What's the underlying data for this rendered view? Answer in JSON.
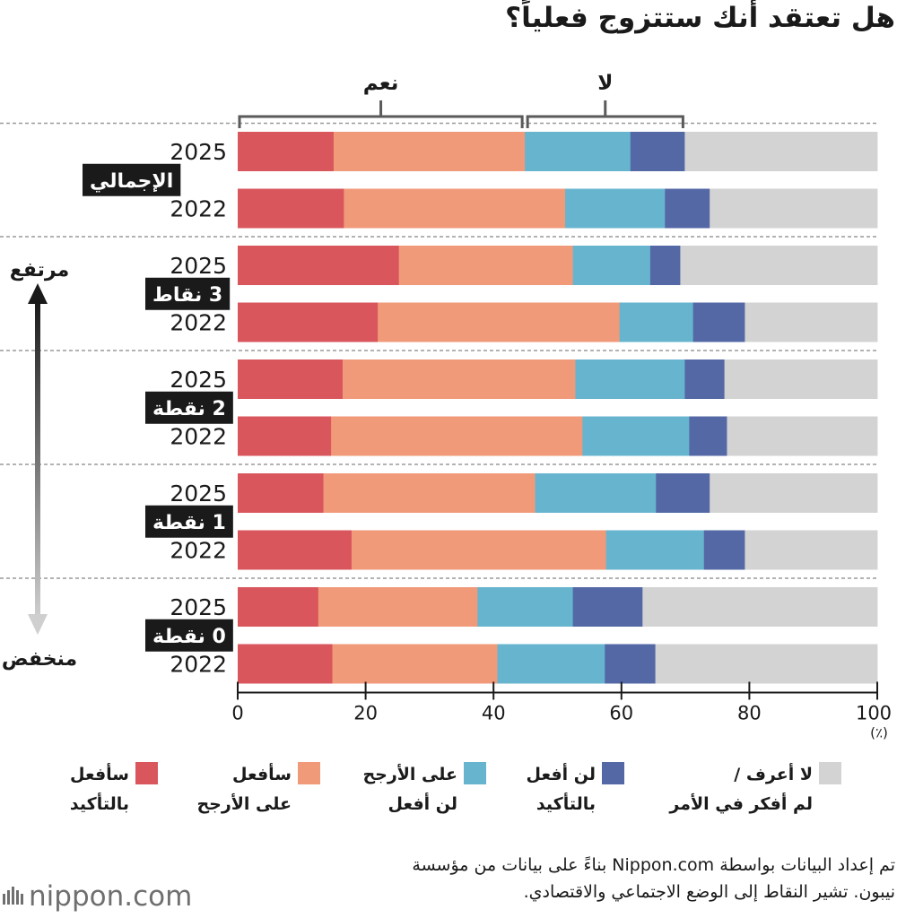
{
  "title": "هل تعتقد أنك ستتزوج فعلياً؟",
  "chart_data": {
    "type": "bar",
    "orientation": "horizontal",
    "stacked": true,
    "xlim": [
      0,
      100
    ],
    "x_ticks": [
      "0",
      "20",
      "40",
      "60",
      "80",
      "100"
    ],
    "unit_label": "(٪)",
    "bracket_labels": {
      "yes": "نعم",
      "no": "لا"
    },
    "axis_arrow": {
      "high": "مرتفع",
      "low": "منخفض"
    },
    "groups": [
      {
        "label": "الإجمالي",
        "rows": [
          {
            "year": "2025",
            "values": [
              15.0,
              29.9,
              16.5,
              8.5,
              30.1
            ]
          },
          {
            "year": "2022",
            "values": [
              16.6,
              34.6,
              15.6,
              7.0,
              26.2
            ]
          }
        ]
      },
      {
        "label": "3 نقاط",
        "rows": [
          {
            "year": "2025",
            "values": [
              25.2,
              27.2,
              12.1,
              4.7,
              30.8
            ]
          },
          {
            "year": "2022",
            "values": [
              21.9,
              37.8,
              11.5,
              8.1,
              20.7
            ]
          }
        ]
      },
      {
        "label": "2 نقطة",
        "rows": [
          {
            "year": "2025",
            "values": [
              16.4,
              36.4,
              17.1,
              6.2,
              23.9
            ]
          },
          {
            "year": "2022",
            "values": [
              14.6,
              39.3,
              16.7,
              5.9,
              23.5
            ]
          }
        ]
      },
      {
        "label": "1 نقطة",
        "rows": [
          {
            "year": "2025",
            "values": [
              13.4,
              33.1,
              18.9,
              8.4,
              26.2
            ]
          },
          {
            "year": "2022",
            "values": [
              17.8,
              39.8,
              15.3,
              6.4,
              20.7
            ]
          }
        ]
      },
      {
        "label": "0 نقطة",
        "rows": [
          {
            "year": "2025",
            "values": [
              12.6,
              24.9,
              14.9,
              10.9,
              36.7
            ]
          },
          {
            "year": "2022",
            "values": [
              14.8,
              25.8,
              16.8,
              7.9,
              34.7
            ]
          }
        ]
      }
    ],
    "series": [
      {
        "name": "سأفعل بالتأكيد",
        "color": "#d9565c"
      },
      {
        "name": "سأفعل على الأرجح",
        "color": "#f09a7a"
      },
      {
        "name": "على الأرجح لن أفعل",
        "color": "#67b4cf"
      },
      {
        "name": "لن أفعل بالتأكيد",
        "color": "#5468a6"
      },
      {
        "name": "لا أعرف / لم أفكر في الأمر",
        "color": "#d3d3d3"
      }
    ]
  },
  "legend": [
    {
      "line1": "سأفعل",
      "line2": "بالتأكيد",
      "color": "#d9565c"
    },
    {
      "line1": "سأفعل",
      "line2": "على الأرجح",
      "color": "#f09a7a"
    },
    {
      "line1": "على الأرجح",
      "line2": "لن أفعل",
      "color": "#67b4cf"
    },
    {
      "line1": "لن أفعل",
      "line2": "بالتأكيد",
      "color": "#5468a6"
    },
    {
      "line1": "لا أعرف /",
      "line2": "لم أفكر في الأمر",
      "color": "#d3d3d3"
    }
  ],
  "source": {
    "line1": "تم إعداد البيانات بواسطة Nippon.com بناءً على بيانات من مؤسسة",
    "line2": "نيبون. تشير النقاط إلى الوضع الاجتماعي والاقتصادي."
  },
  "logo": {
    "text": "nippon.com",
    "icon": "sun-logo-icon"
  }
}
